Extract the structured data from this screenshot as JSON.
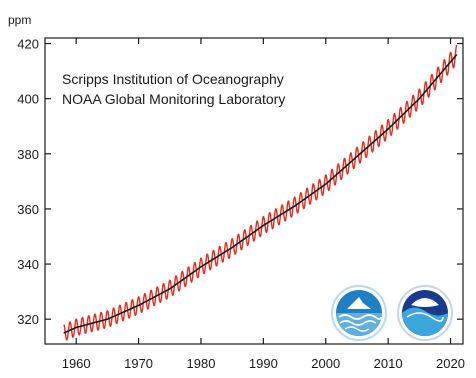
{
  "chart_data": {
    "type": "line",
    "ylabel": "ppm",
    "xlim": [
      1955,
      2022
    ],
    "ylim": [
      311,
      422
    ],
    "x_ticks": [
      1960,
      1970,
      1980,
      1990,
      2000,
      2010,
      2020
    ],
    "y_ticks": [
      320,
      340,
      360,
      380,
      400,
      420
    ],
    "x_tick_labels": [
      "1960",
      "1970",
      "1980",
      "1990",
      "2000",
      "2010",
      "2020"
    ],
    "y_tick_labels": [
      "320",
      "340",
      "360",
      "380",
      "400",
      "420"
    ],
    "annotations": [
      "Scripps Institution of Oceanography",
      "NOAA Global Monitoring Laboratory"
    ],
    "grid": false,
    "series": [
      {
        "style": "monthly",
        "color": "#e8291c",
        "seasonal_amplitude": 3,
        "x": [
          1958,
          1960,
          1965,
          1970,
          1975,
          1980,
          1985,
          1990,
          1995,
          2000,
          2005,
          2010,
          2015,
          2021
        ],
        "y": [
          315,
          317,
          320,
          325,
          331,
          339,
          346,
          354,
          361,
          369,
          379,
          389,
          400,
          416
        ]
      },
      {
        "style": "annual-trend",
        "color": "#1a1a1a",
        "x": [
          1958,
          1960,
          1965,
          1970,
          1975,
          1980,
          1985,
          1990,
          1995,
          2000,
          2005,
          2010,
          2015,
          2021
        ],
        "y": [
          315,
          317,
          320,
          325,
          331,
          339,
          346,
          354,
          361,
          369,
          379,
          389,
          400,
          416
        ]
      }
    ],
    "logos": [
      {
        "icon": "scripps-logo-icon",
        "colors": [
          "#1f7fc4",
          "#bfe3f5"
        ]
      },
      {
        "icon": "noaa-logo-icon",
        "colors": [
          "#1a3a8f",
          "#3aa6dc"
        ]
      }
    ]
  }
}
